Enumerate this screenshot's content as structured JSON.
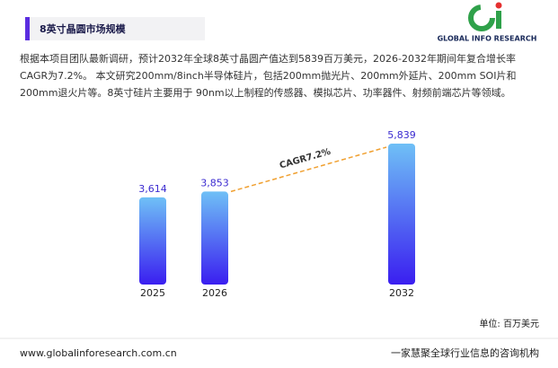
{
  "header": {
    "title": "8英寸晶圆市场规模",
    "logo_text": "GLOBAL INFO RESEARCH"
  },
  "description": "根据本项目团队最新调研，预计2032年全球8英寸晶圆产值达到5839百万美元，2026-2032年期间年复合增长率CAGR为7.2%。 本文研究200mm/8inch半导体硅片，包括200mm抛光片、200mm外延片、200mm SOI片和200mm退火片等。8英寸硅片主要用于 90nm以上制程的传感器、模拟芯片、功率器件、射频前端芯片等领域。",
  "chart_data": {
    "type": "bar",
    "categories": [
      "2025",
      "2026",
      "2032"
    ],
    "values": [
      3614,
      3853,
      5839
    ],
    "value_labels": [
      "3,614",
      "3,853",
      "5,839"
    ],
    "annotation": "CAGR7.2%",
    "unit_label": "单位: 百万美元"
  },
  "footer": {
    "url": "www.globalinforesearch.com.cn",
    "tagline": "一家慧聚全球行业信息的咨询机构"
  }
}
